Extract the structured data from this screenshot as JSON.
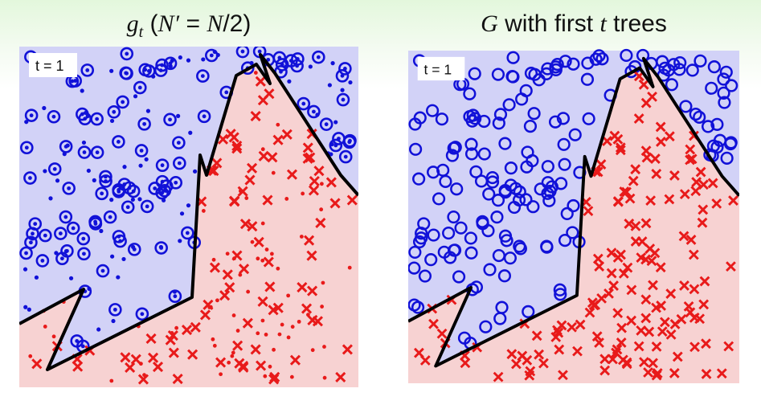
{
  "panels": [
    {
      "title_parts": [
        {
          "text": "g",
          "style": "italic"
        },
        {
          "text": "t",
          "style": "sub"
        },
        {
          "text": " (",
          "style": "normal"
        },
        {
          "text": "N′",
          "style": "italic"
        },
        {
          "text": " = ",
          "style": "normal"
        },
        {
          "text": "N",
          "style": "italic"
        },
        {
          "text": "/2)",
          "style": "normal"
        }
      ],
      "label": "t = 1",
      "show_small_dots": true
    },
    {
      "title_parts": [
        {
          "text": "G",
          "style": "italic"
        },
        {
          "text": " with first ",
          "style": "normal"
        },
        {
          "text": "t",
          "style": "italic"
        },
        {
          "text": " trees",
          "style": "normal"
        }
      ],
      "label": "t = 1",
      "show_small_dots": false
    }
  ],
  "colors": {
    "blue_region": "#d2d2f7",
    "red_region": "#f7d2d2",
    "blue_marker": "#1111d8",
    "red_marker": "#e81a1a",
    "boundary": "#000000"
  }
}
